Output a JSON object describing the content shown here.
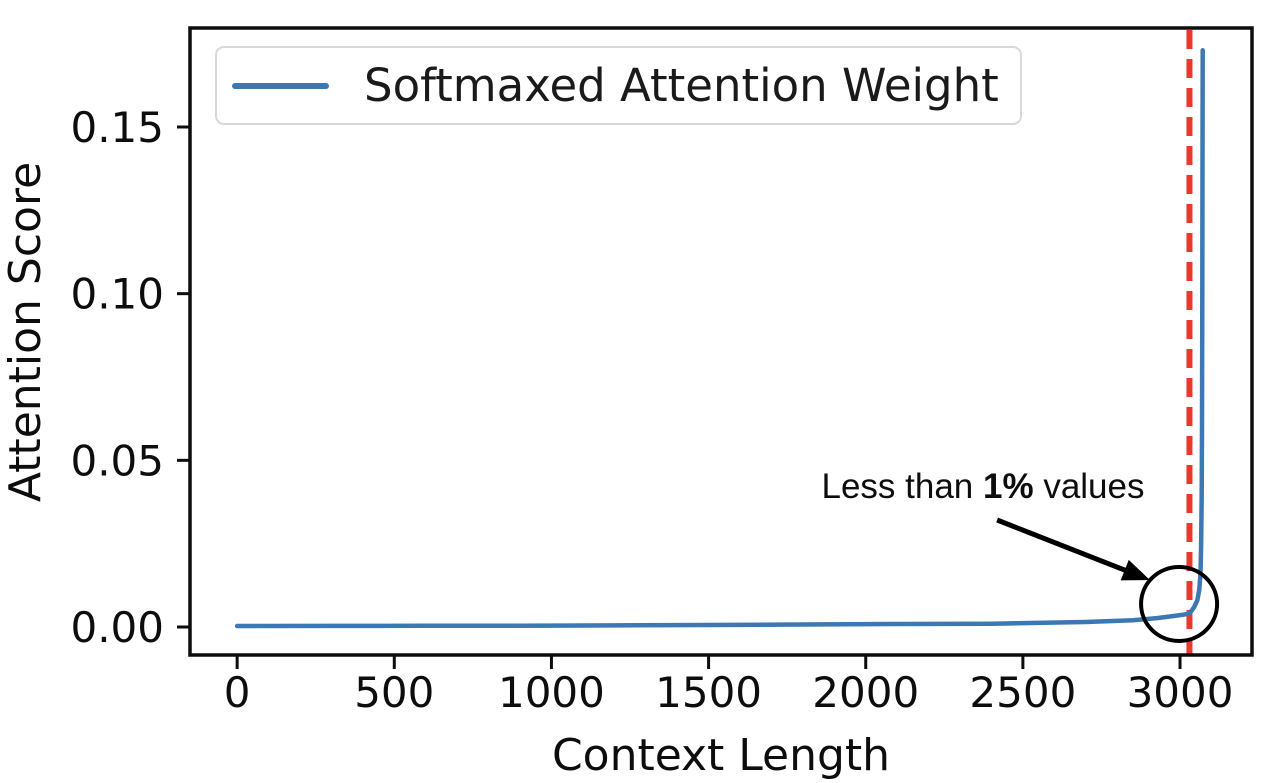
{
  "figure": {
    "background": "#ffffff",
    "x_axis_label": "Context Length",
    "y_axis_label": "Attention Score",
    "legend": {
      "label": "Softmaxed Attention Weight",
      "line_color": "#3b78b4"
    },
    "annotation": {
      "prefix": "Less than ",
      "bold": "1%",
      "suffix": " values"
    }
  },
  "chart_data": {
    "type": "line",
    "title": "",
    "xlabel": "Context Length",
    "ylabel": "Attention Score",
    "grid": false,
    "legend_position": "upper left",
    "xlim": [
      -150,
      3229
    ],
    "ylim": [
      -0.0084,
      0.1797
    ],
    "x_ticks": {
      "values": [
        0,
        500,
        1000,
        1500,
        2000,
        2500,
        3000
      ],
      "labels": [
        "0",
        "500",
        "1000",
        "1500",
        "2000",
        "2500",
        "3000"
      ]
    },
    "y_ticks": {
      "values": [
        0.0,
        0.05,
        0.1,
        0.15
      ],
      "labels": [
        "0.00",
        "0.05",
        "0.10",
        "0.15"
      ]
    },
    "series": [
      {
        "name": "Softmaxed Attention Weight",
        "color": "#3b78b4",
        "line_width": 4.5,
        "points": [
          [
            0,
            0.0003
          ],
          [
            300,
            0.00032
          ],
          [
            600,
            0.00036
          ],
          [
            900,
            0.0004
          ],
          [
            1200,
            0.00048
          ],
          [
            1500,
            0.0006
          ],
          [
            1800,
            0.00075
          ],
          [
            2100,
            0.0009
          ],
          [
            2400,
            0.001
          ],
          [
            2700,
            0.0015
          ],
          [
            2850,
            0.002
          ],
          [
            2930,
            0.0027
          ],
          [
            2980,
            0.0033
          ],
          [
            3010,
            0.0037
          ],
          [
            3030,
            0.004
          ],
          [
            3045,
            0.006
          ],
          [
            3055,
            0.008
          ],
          [
            3061,
            0.011
          ],
          [
            3065,
            0.016
          ],
          [
            3067,
            0.024
          ],
          [
            3069,
            0.04
          ],
          [
            3070,
            0.06
          ],
          [
            3071,
            0.1
          ],
          [
            3071.5,
            0.14
          ],
          [
            3072,
            0.173
          ]
        ]
      }
    ],
    "vline": {
      "x": 3030,
      "color": "#e8392c",
      "style": "dashed",
      "line_width": 6
    },
    "annotations": {
      "text": "Less than 1% values",
      "text_center": [
        2370,
        0.0417
      ],
      "arrow_from": [
        2418,
        0.0321
      ],
      "arrow_to": [
        2904,
        0.0141
      ],
      "circle_center": [
        2997,
        0.0069
      ],
      "circle_radius_x": 121,
      "circle_radius_y": 0.0111,
      "annotation_color": "#000000"
    },
    "peak": {
      "x": 3072,
      "y": 0.173
    }
  }
}
